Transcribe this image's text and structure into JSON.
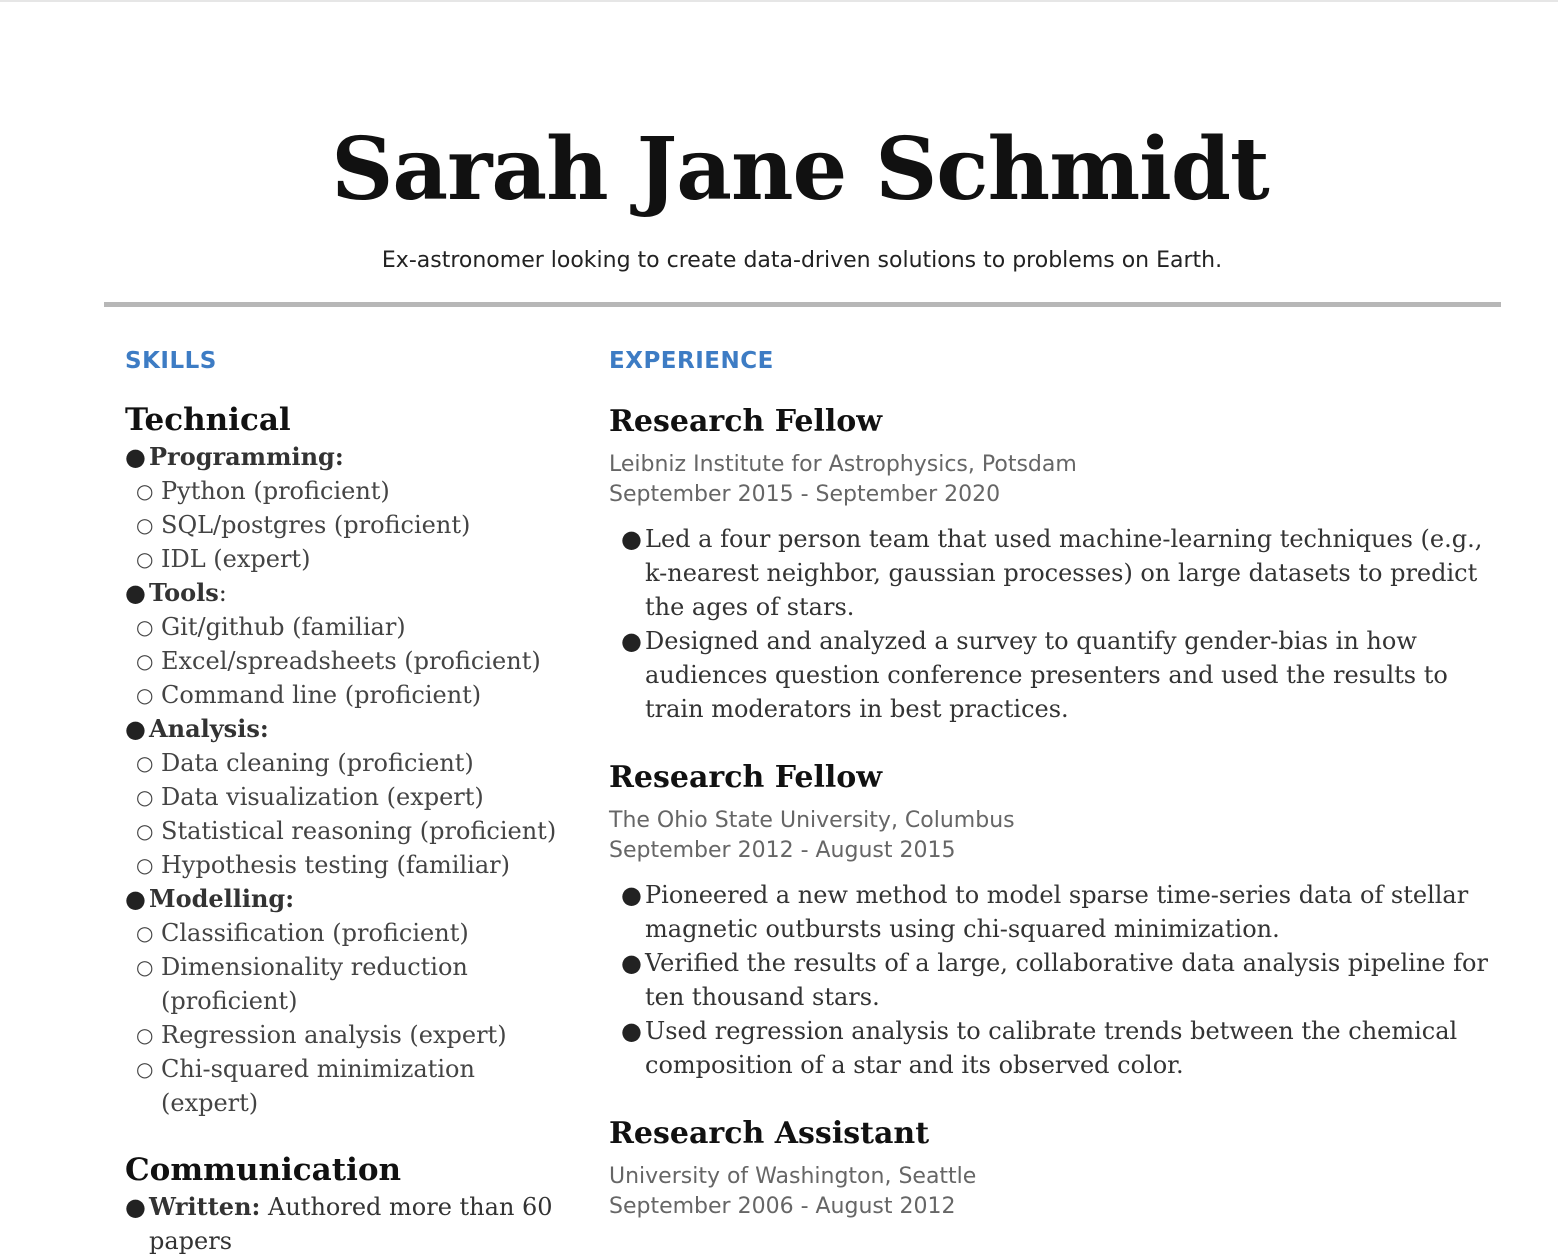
{
  "header": {
    "name": "Sarah Jane Schmidt",
    "tagline": "Ex-astronomer looking to create data-driven solutions to problems on Earth."
  },
  "skills": {
    "title": "SKILLS",
    "technical": {
      "heading": "Technical",
      "groups": [
        {
          "label": "Programming:",
          "items": [
            "Python (proficient)",
            "SQL/postgres (proficient)",
            "IDL (expert)"
          ]
        },
        {
          "label": "Tools",
          "suffix": ":",
          "items": [
            "Git/github (familiar)",
            "Excel/spreadsheets (proficient)",
            "Command line (proficient)"
          ]
        },
        {
          "label": "Analysis:",
          "items": [
            "Data cleaning (proficient)",
            "Data visualization (expert)",
            "Statistical reasoning (proficient)",
            "Hypothesis testing (familiar)"
          ]
        },
        {
          "label": "Modelling:",
          "items": [
            "Classification (proficient)",
            "Dimensionality reduction",
            "(proficient)",
            "Regression analysis (expert)",
            "Chi-squared minimization",
            "(expert)"
          ]
        }
      ]
    },
    "communication": {
      "heading": "Communication",
      "written_label": "Written:",
      "written_text": " Authored more than 60",
      "written_cont": "papers"
    }
  },
  "experience": {
    "title": "EXPERIENCE",
    "jobs": [
      {
        "title": "Research Fellow",
        "org": "Leibniz Institute for Astrophysics, Potsdam",
        "dates": "September 2015 - September 2020",
        "bullets": [
          "Led a four person team that used machine-learning techniques (e.g., k-nearest neighbor, gaussian processes) on large datasets to predict the ages of stars.",
          "Designed and analyzed a survey to quantify gender-bias in how audiences question conference presenters and used the results to train moderators in best practices."
        ]
      },
      {
        "title": "Research Fellow",
        "org": "The Ohio State University, Columbus",
        "dates": "September 2012 - August 2015",
        "bullets": [
          "Pioneered a new method to model sparse time-series data of stellar magnetic outbursts using chi-squared minimization.",
          "Verified the results of a large, collaborative data analysis pipeline for ten thousand stars.",
          "Used regression analysis to calibrate trends between the chemical composition of a star and its observed color."
        ]
      },
      {
        "title": "Research Assistant",
        "org": "University of Washington, Seattle",
        "dates": "September 2006 - August 2012",
        "bullets": []
      }
    ]
  }
}
